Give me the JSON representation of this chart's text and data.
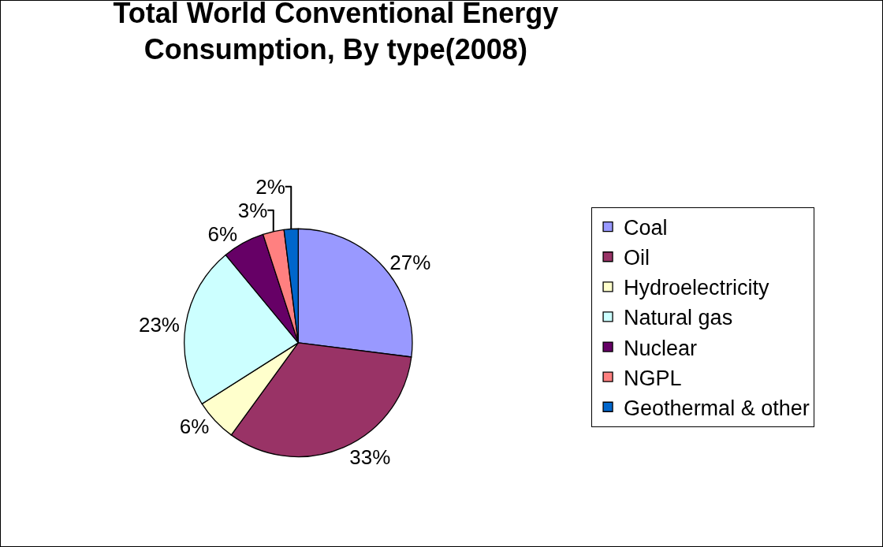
{
  "chart_data": {
    "type": "pie",
    "title": "Total World Conventional Energy\nConsumption, By type(2008)",
    "categories": [
      "Coal",
      "Oil",
      "Hydroelectricity",
      "Natural gas",
      "Nuclear",
      "NGPL",
      "Geothermal & other"
    ],
    "values": [
      27,
      33,
      6,
      23,
      6,
      3,
      2
    ],
    "value_labels": [
      "27%",
      "33%",
      "6%",
      "23%",
      "6%",
      "3%",
      "2%"
    ],
    "colors": [
      "#9999ff",
      "#993366",
      "#ffffcc",
      "#ccffff",
      "#660066",
      "#ff8080",
      "#0066cc"
    ],
    "legend": "right"
  }
}
